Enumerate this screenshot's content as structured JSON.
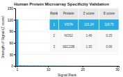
{
  "chart_data": {
    "type": "bar",
    "title": "Human Protein Microarray Specificity Validation",
    "xlabel": "Signal Rank",
    "ylabel": "Strength of Signal (Z score)",
    "x": [
      1,
      2,
      3,
      4,
      5,
      6,
      7,
      8,
      9,
      10,
      11,
      12,
      13,
      14,
      15,
      16,
      17,
      18,
      19,
      20,
      21,
      22,
      23,
      24,
      25,
      26,
      27,
      28,
      29,
      30
    ],
    "values": [
      121.24,
      1.49,
      1.33,
      1.1,
      1.0,
      0.9,
      0.85,
      0.8,
      0.75,
      0.7,
      0.65,
      0.6,
      0.55,
      0.5,
      0.45,
      0.42,
      0.4,
      0.38,
      0.35,
      0.33,
      0.3,
      0.28,
      0.25,
      0.23,
      0.2,
      0.18,
      0.15,
      0.13,
      0.1,
      0.08
    ],
    "color": "#29abe2",
    "xlim": [
      0.5,
      30.5
    ],
    "xticks": [
      1,
      10,
      20,
      30
    ],
    "ylim": [
      0,
      150
    ],
    "yticks": [
      0,
      30,
      60,
      90,
      120,
      150
    ],
    "grid": true,
    "table": {
      "columns": [
        "Rank",
        "Protein",
        "Z score",
        "S score"
      ],
      "rows": [
        [
          "1",
          "VISTA",
          "121.24",
          "119.75"
        ],
        [
          "2",
          "NOS2",
          "1.49",
          "0.15"
        ],
        [
          "3",
          "SEC23B",
          "1.33",
          "0.06"
        ]
      ]
    }
  }
}
